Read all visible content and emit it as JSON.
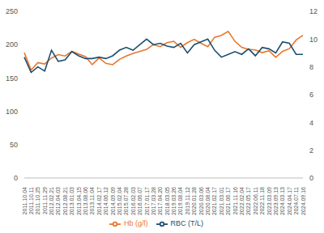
{
  "chart_data": {
    "type": "line",
    "categories": [
      "2011.10.04",
      "2011.10.11",
      "2011.10.25",
      "2011.11.29",
      "2012.02.21",
      "2012.04.03",
      "2012.08.21",
      "2013.01.03",
      "2013.04.15",
      "2013.08.06",
      "2013.11.04",
      "2014.02.17",
      "2014.06.12",
      "2014.09.09",
      "2015.02.04",
      "2015.07.28",
      "2016.02.03",
      "2016.06.07",
      "2017.01.17",
      "2017.03.28",
      "2017.04.20",
      "2018.03.05",
      "2019.03.26",
      "2019.08.04",
      "2019.11.12",
      "2020.01.28",
      "2020.03.06",
      "2020.08.04",
      "2021.02.17",
      "2021.03.01",
      "2021.06.17",
      "2021.11.16",
      "2022.02.04",
      "2022.05.17",
      "2022.06.11",
      "2022.11.18",
      "2023.03.09",
      "2023.09.13",
      "2024.03.13",
      "2024.04.17",
      "2024.07.11",
      "2024.09.16"
    ],
    "series": [
      {
        "name": "Hb (g/l)",
        "color": "#e8772e",
        "values": [
          188,
          162,
          173,
          171,
          180,
          185,
          183,
          190,
          186,
          182,
          170,
          180,
          172,
          170,
          178,
          183,
          187,
          190,
          193,
          200,
          197,
          203,
          205,
          196,
          203,
          208,
          202,
          197,
          211,
          214,
          220,
          205,
          196,
          193,
          192,
          188,
          191,
          181,
          190,
          194,
          207,
          214
        ]
      },
      {
        "name": "RBC (T/L)",
        "color": "#1d4f6e",
        "axis": "y2",
        "values": [
          8.7,
          7.6,
          8.0,
          7.7,
          9.2,
          8.4,
          8.5,
          9.1,
          8.8,
          8.6,
          8.6,
          8.7,
          8.6,
          8.8,
          9.2,
          9.4,
          9.2,
          9.6,
          10.0,
          9.6,
          9.7,
          9.5,
          9.4,
          9.7,
          9.0,
          9.6,
          9.8,
          10.0,
          9.2,
          8.7,
          8.9,
          9.1,
          8.9,
          9.3,
          8.8,
          9.4,
          9.3,
          9.0,
          9.8,
          9.7,
          8.9,
          8.9
        ]
      }
    ],
    "ylim": [
      0,
      250
    ],
    "yticks": [
      0,
      50,
      100,
      150,
      200,
      250
    ],
    "y2lim": [
      0,
      12
    ],
    "y2ticks": [
      0,
      2,
      4,
      6,
      8,
      10,
      12
    ],
    "legend": "bottom",
    "grid": false
  }
}
